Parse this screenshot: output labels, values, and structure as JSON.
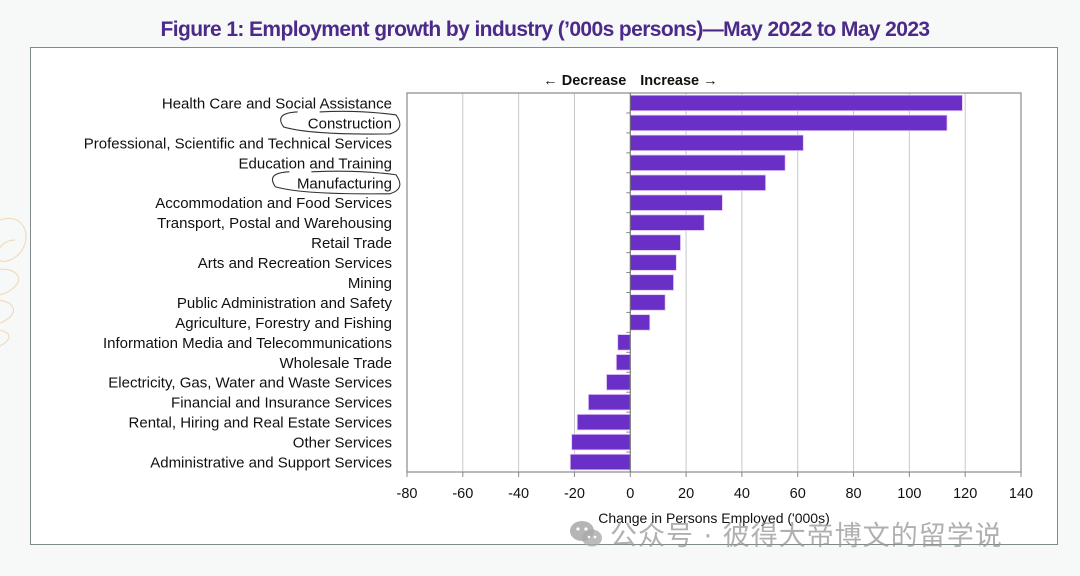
{
  "page": {
    "title": "Figure 1: Employment growth by industry (’000s persons)—May 2022 to May 2023",
    "watermark": "公众号 · 彼得大帝博文的留学说"
  },
  "colors": {
    "bar": "#6a2fc6",
    "bar_edge": "#e3c8f5",
    "title": "#4b2a8a",
    "grid": "#c8c8c8"
  },
  "chart_data": {
    "type": "bar",
    "orientation": "horizontal",
    "title": "Figure 1: Employment growth by industry (’000s persons)—May 2022 to May 2023",
    "direction_labels": {
      "left": "Decrease",
      "right": "Increase"
    },
    "xlabel": "Change in Persons Employed ('000s)",
    "ylabel": "",
    "xlim": [
      -80,
      140
    ],
    "xticks": [
      -80,
      -60,
      -40,
      -20,
      0,
      20,
      40,
      60,
      80,
      100,
      120,
      140
    ],
    "grid": true,
    "categories": [
      "Health Care and Social Assistance",
      "Construction",
      "Professional, Scientific and Technical Services",
      "Education and Training",
      "Manufacturing",
      "Accommodation and Food Services",
      "Transport, Postal and Warehousing",
      "Retail Trade",
      "Arts and Recreation Services",
      "Mining",
      "Public Administration and Safety",
      "Agriculture, Forestry and Fishing",
      "Information Media and Telecommunications",
      "Wholesale Trade",
      "Electricity, Gas, Water and Waste Services",
      "Financial and Insurance Services",
      "Rental, Hiring and Real Estate Services",
      "Other Services",
      "Administrative and Support Services"
    ],
    "values": [
      119,
      113.5,
      62,
      55.5,
      48.5,
      33,
      26.5,
      18,
      16.5,
      15.5,
      12.5,
      7,
      -4.5,
      -5,
      -8.5,
      -15,
      -19,
      -21,
      -21.5
    ],
    "annotations": [
      {
        "type": "hand-drawn circle",
        "target": "Construction"
      },
      {
        "type": "hand-drawn circle",
        "target": "Manufacturing"
      }
    ]
  }
}
